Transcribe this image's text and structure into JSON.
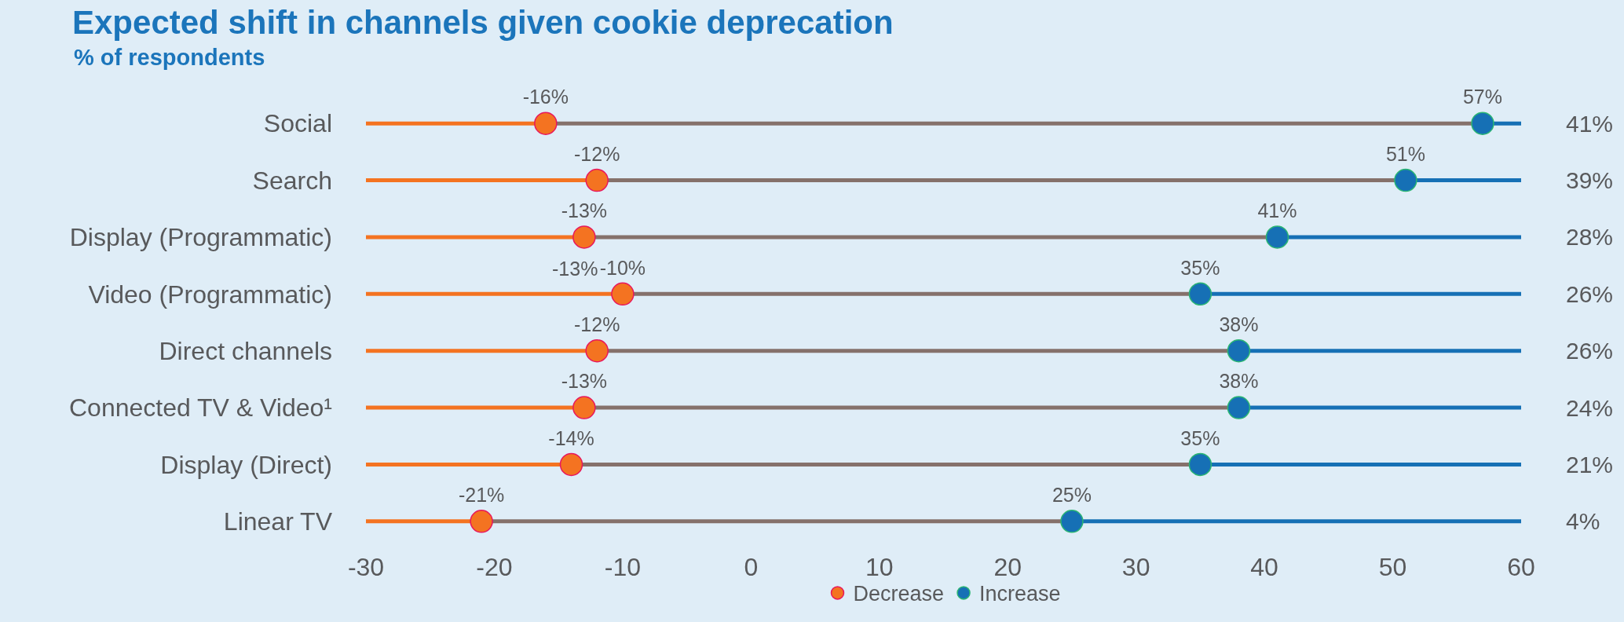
{
  "chart_data": {
    "type": "scatter",
    "orientation": "horizontal",
    "title": "Expected shift in channels given cookie deprecation",
    "subtitle": "% of respondents",
    "categories": [
      "Social",
      "Search",
      "Display (Programmatic)",
      "Video (Programmatic)",
      "Direct channels",
      "Connected TV & Video¹",
      "Display (Direct)",
      "Linear TV"
    ],
    "series": [
      {
        "name": "Decrease",
        "color": "#f47321",
        "values": [
          -16,
          -12,
          -13,
          -10,
          -12,
          -13,
          -14,
          -21
        ],
        "value_labels": [
          "-16%",
          "-12%",
          "-13%",
          "-10%",
          "-12%",
          "-13%",
          "-14%",
          "-21%"
        ]
      },
      {
        "name": "Increase",
        "color": "#1670b5",
        "values": [
          57,
          51,
          41,
          35,
          38,
          38,
          35,
          25
        ],
        "value_labels": [
          "57%",
          "51%",
          "41%",
          "35%",
          "38%",
          "38%",
          "35%",
          "25%"
        ]
      }
    ],
    "xlim": [
      -30,
      60
    ],
    "xticks": [
      -30,
      -20,
      -10,
      0,
      10,
      20,
      30,
      40,
      50,
      60
    ],
    "annotations": [
      {
        "text": "-13%",
        "x": -10,
        "y": "Video (Programmatic)"
      },
      "41%",
      "39%",
      "28%",
      "26%",
      "26%",
      "24%",
      "21%",
      "4%"
    ],
    "legend": "bottom",
    "marker": "circle",
    "grid": "y"
  }
}
